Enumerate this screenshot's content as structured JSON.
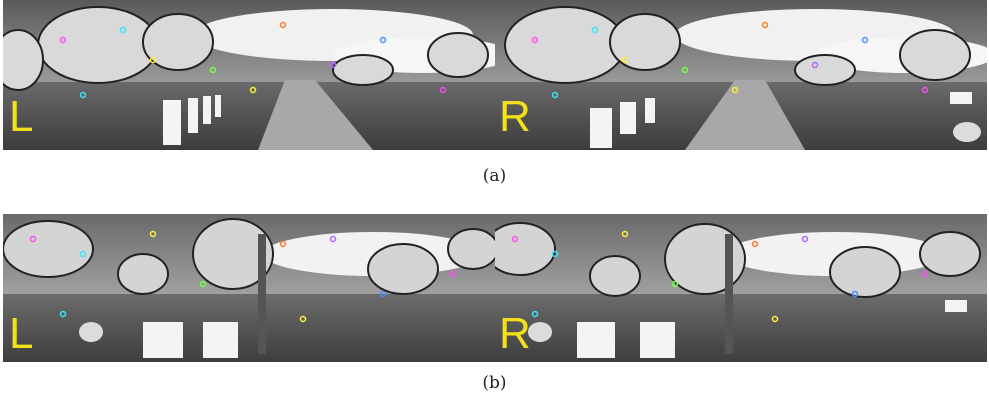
{
  "figure": {
    "captions": {
      "a": "(a)",
      "b": "(b)"
    },
    "rows": [
      {
        "id": "a",
        "panels": [
          {
            "eye_label": "L"
          },
          {
            "eye_label": "R"
          }
        ]
      },
      {
        "id": "b",
        "panels": [
          {
            "eye_label": "L"
          },
          {
            "eye_label": "R"
          }
        ]
      }
    ]
  },
  "colors": {
    "eye_label": "#f2e01a",
    "keypoint_palette": [
      "#ff4df0",
      "#39e6ff",
      "#ffee33",
      "#7cff4a",
      "#ff7a2e",
      "#b266ff",
      "#ffffff",
      "#4d8bff"
    ]
  },
  "icons": {
    "keypoints": "circle-marker-icon"
  }
}
